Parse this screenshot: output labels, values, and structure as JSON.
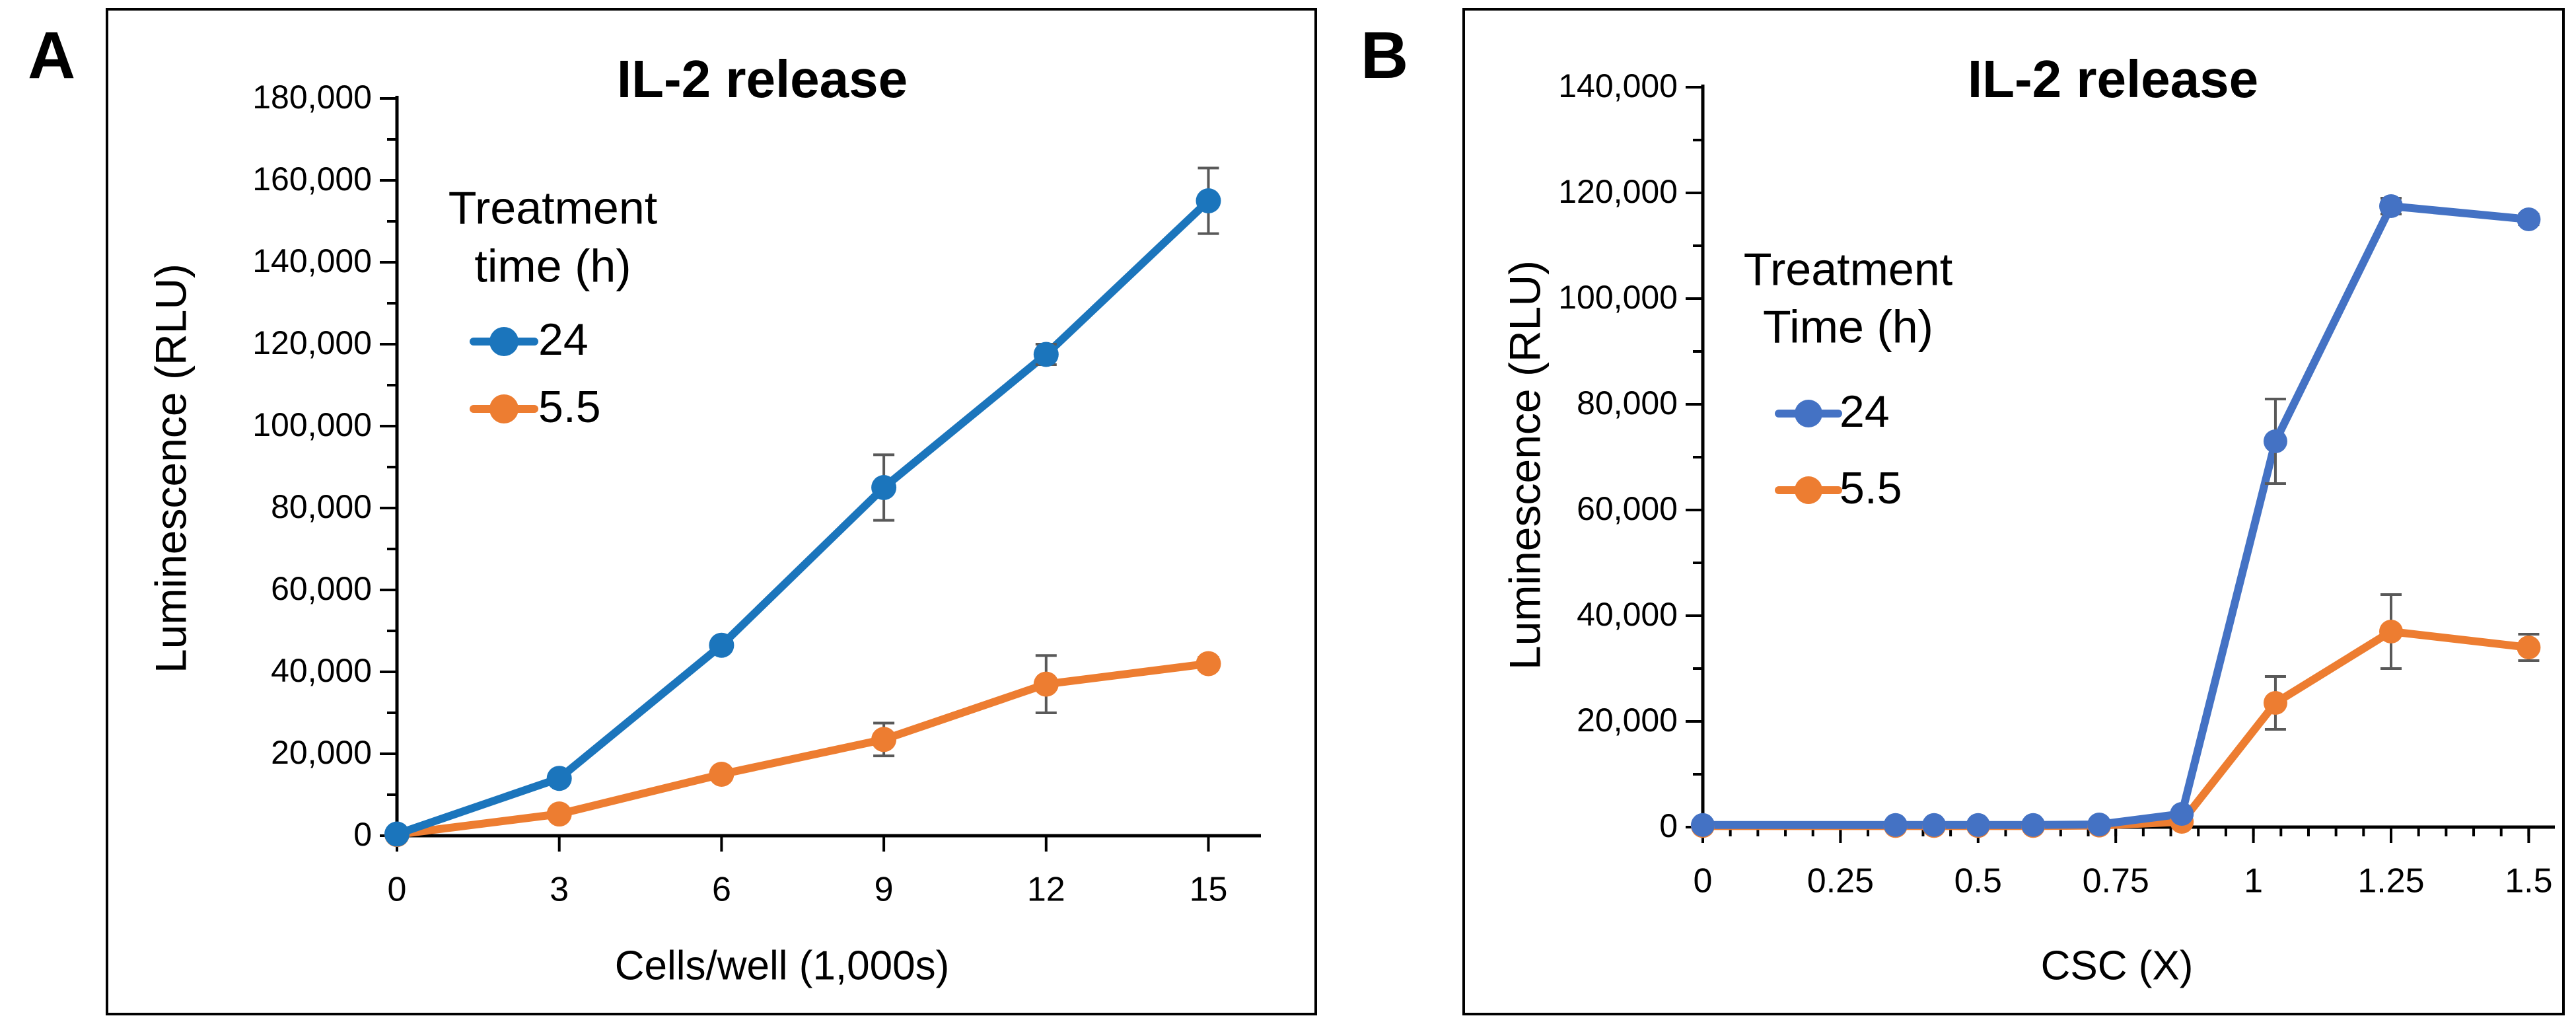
{
  "figure": {
    "panel_a_label": "A",
    "panel_b_label": "B"
  },
  "colors": {
    "series_5_5_orange": "#ED7D31",
    "series_24_blue_panel_a": "#1B75BC",
    "series_24_blue_panel_b": "#4472C4",
    "error_bar": "#595959",
    "axis": "#000000",
    "panel_border": "#000000",
    "background": "#FFFFFF"
  },
  "chart_data": [
    {
      "panel_label": "A",
      "type": "line",
      "title": "IL-2 release",
      "xlabel": "Cells/well (1,000s)",
      "ylabel": "Luminescence (RLU)",
      "x": [
        0,
        3,
        6,
        9,
        12,
        15
      ],
      "x_tick_labels": [
        "0",
        "3",
        "6",
        "9",
        "12",
        "15"
      ],
      "xlim": [
        0,
        15
      ],
      "ylim": [
        0,
        180000
      ],
      "y_major_step": 20000,
      "y_minor_step": 10000,
      "grid": false,
      "legend": {
        "title_lines": [
          "Treatment",
          "time (h)"
        ],
        "position": "upper-left-inside"
      },
      "series": [
        {
          "name": "5.5",
          "color": "#ED7D31",
          "values": [
            300,
            5300,
            15000,
            23500,
            37000,
            42000
          ],
          "errors": [
            0,
            0,
            900,
            4000,
            7000,
            1500
          ]
        },
        {
          "name": "24",
          "color": "#1B75BC",
          "values": [
            400,
            14000,
            46500,
            85000,
            117500,
            155000
          ],
          "errors": [
            0,
            0,
            0,
            8000,
            2500,
            8000
          ]
        }
      ]
    },
    {
      "panel_label": "B",
      "type": "line",
      "title": "IL-2 release",
      "xlabel": "CSC (X)",
      "ylabel": "Luminescence (RLU)",
      "x": [
        0,
        0.35,
        0.42,
        0.5,
        0.6,
        0.72,
        0.87,
        1.04,
        1.25,
        1.5
      ],
      "x_tick_labels": [
        "0",
        "0.25",
        "0.5",
        "0.75",
        "1",
        "1.25",
        "1.5"
      ],
      "x_tick_values": [
        0,
        0.25,
        0.5,
        0.75,
        1,
        1.25,
        1.5
      ],
      "x_minor_step": 0.05,
      "xlim": [
        0,
        1.5
      ],
      "ylim": [
        0,
        140000
      ],
      "y_major_step": 20000,
      "y_minor_step": 10000,
      "grid": false,
      "legend": {
        "title_lines": [
          "Treatment",
          "Time (h)"
        ],
        "position": "upper-left-inside"
      },
      "series": [
        {
          "name": "5.5",
          "color": "#ED7D31",
          "values": [
            200,
            200,
            200,
            200,
            200,
            300,
            1000,
            23500,
            37000,
            34000
          ],
          "errors": [
            0,
            0,
            0,
            0,
            0,
            0,
            0,
            5000,
            7000,
            2500
          ]
        },
        {
          "name": "24",
          "color": "#4472C4",
          "values": [
            400,
            400,
            400,
            400,
            400,
            500,
            2500,
            73000,
            117500,
            115000
          ],
          "errors": [
            0,
            0,
            0,
            0,
            0,
            0,
            0,
            8000,
            1500,
            1000
          ]
        }
      ]
    }
  ]
}
